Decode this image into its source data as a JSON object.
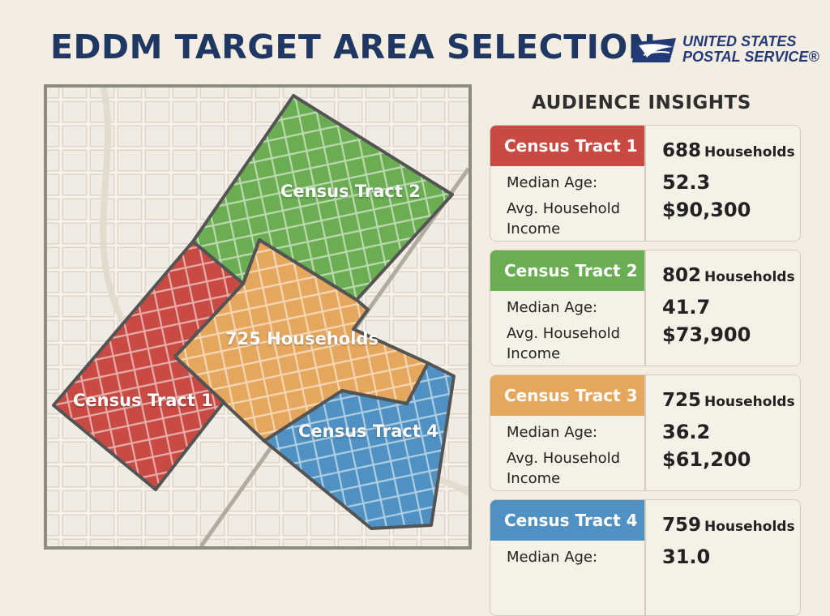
{
  "header": {
    "title": "EDDM TARGET AREA SELECTION"
  },
  "logo": {
    "line1": "UNITED STATES",
    "line2": "POSTAL SERVICE®"
  },
  "map": {
    "labels": {
      "tract1": "Census Tract 1",
      "tract2": "Census Tract 2",
      "tract3": "725 Households",
      "tract4": "Census Tract 4"
    },
    "colors": {
      "tract1": "#c84a43",
      "tract2": "#6aad52",
      "tract3": "#e4a75d",
      "tract4": "#4e91c2"
    }
  },
  "insights": {
    "title": "AUDIENCE INSIGHTS",
    "labels": {
      "households": "Households",
      "median_age": "Median Age:",
      "income": "Avg. Household Income"
    },
    "tracts": [
      {
        "name": "Census Tract 1",
        "households": "688",
        "median_age": "52.3",
        "income": "$90,300",
        "color": "#c84a43"
      },
      {
        "name": "Census Tract 2",
        "households": "802",
        "median_age": "41.7",
        "income": "$73,900",
        "color": "#6aad52"
      },
      {
        "name": "Census Tract 3",
        "households": "725",
        "median_age": "36.2",
        "income": "$61,200",
        "color": "#e4a75d"
      },
      {
        "name": "Census Tract 4",
        "households": "759",
        "median_age": "31.0",
        "income": "",
        "color": "#4e91c2"
      }
    ]
  }
}
